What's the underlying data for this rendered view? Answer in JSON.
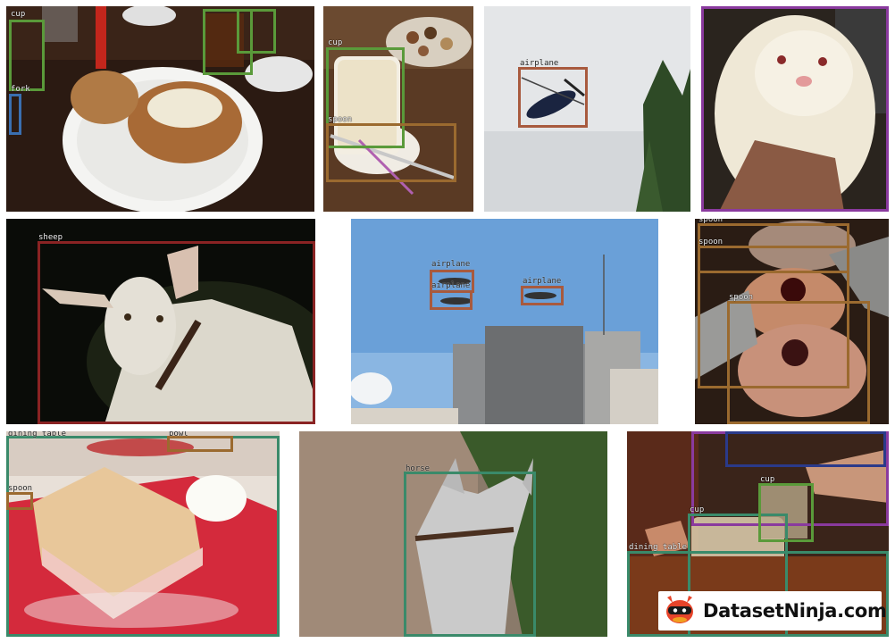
{
  "colors": {
    "green": "#5a9a3a",
    "brown": "#9b6a2f",
    "rust": "#a85a3e",
    "purple": "#8a3a9e",
    "red": "#8a2323",
    "teal": "#3a8a6a",
    "navy": "#2a3a8a",
    "white": "#ffffff"
  },
  "tiles": {
    "t1": {
      "labels": [
        "cup",
        "fork"
      ]
    },
    "t2": {
      "labels": [
        "cup",
        "spoon"
      ]
    },
    "t3": {
      "labels": [
        "airplane"
      ]
    },
    "t5": {
      "labels": [
        "sheep"
      ]
    },
    "t6": {
      "labels": [
        "airplane",
        "airplane",
        "airplane"
      ]
    },
    "t7": {
      "labels": [
        "spoon",
        "spoon",
        "spoon"
      ]
    },
    "t8": {
      "labels": [
        "dining table",
        "bowl",
        "spoon"
      ]
    },
    "t9": {
      "labels": [
        "horse"
      ]
    },
    "t10": {
      "labels": [
        "cup",
        "cup",
        "dining table"
      ]
    }
  },
  "logo": {
    "text": "DatasetNinja.com",
    "icon": "ninja-icon"
  }
}
